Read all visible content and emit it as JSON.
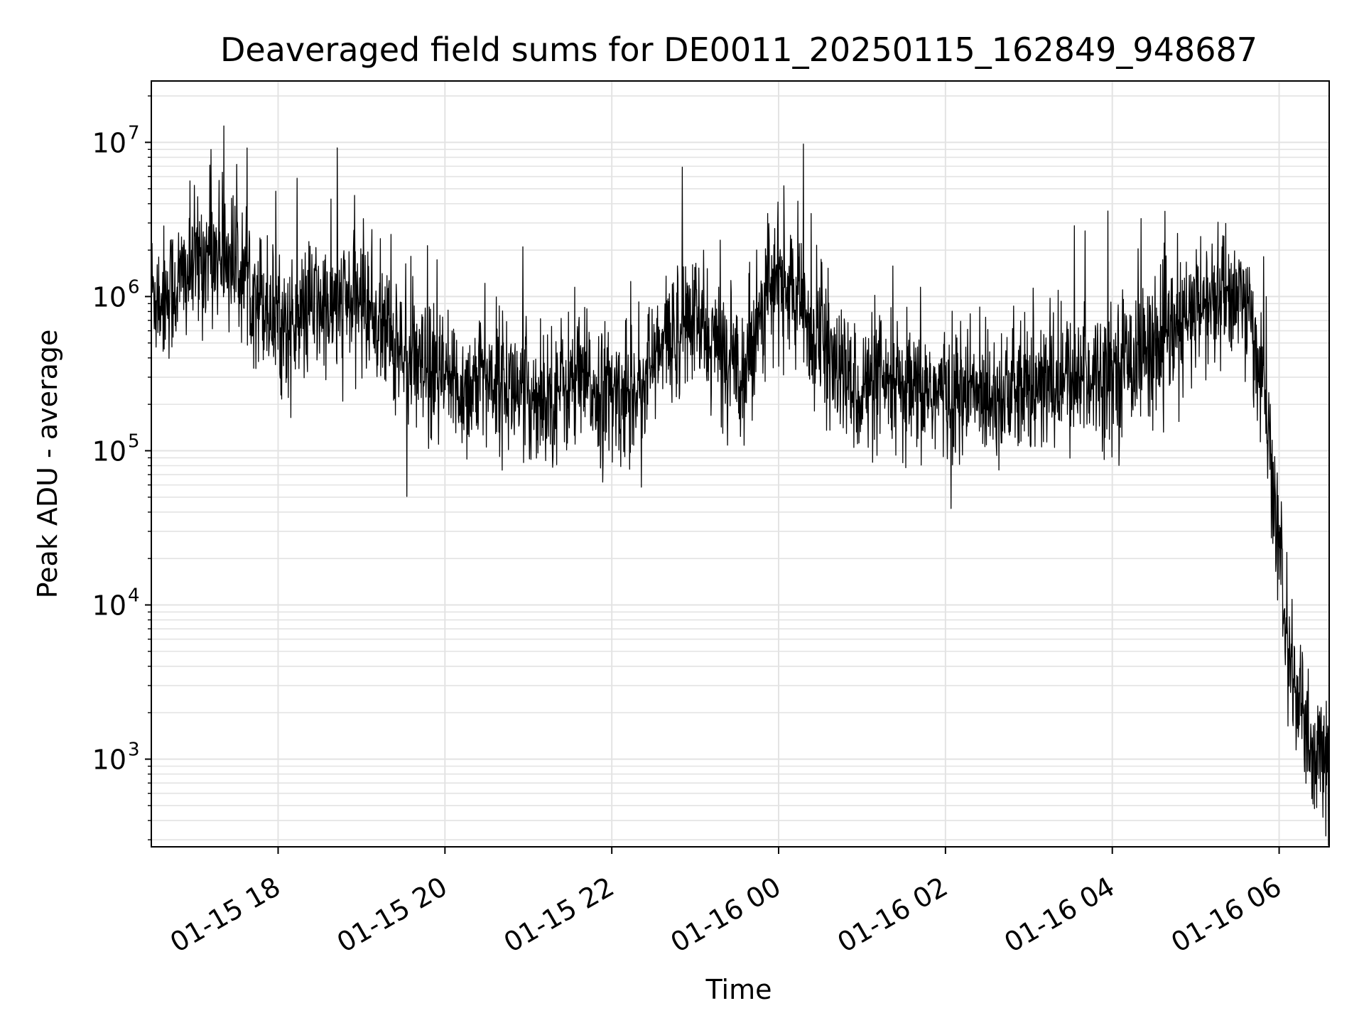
{
  "chart_data": {
    "type": "line",
    "title": "Deaveraged field sums for DE0011_20250115_162849_948687",
    "xlabel": "Time",
    "ylabel": "Peak ADU - average",
    "yscale": "log",
    "grid": true,
    "xlim": [
      "2025-01-15 16:29",
      "2025-01-16 06:36"
    ],
    "ylim": [
      270,
      25000000
    ],
    "x_ticks": [
      "01-15 18",
      "01-15 20",
      "01-15 22",
      "01-16 00",
      "01-16 02",
      "01-16 04",
      "01-16 06"
    ],
    "y_ticks": [
      {
        "base": "10",
        "exp": "3",
        "value": 1000
      },
      {
        "base": "10",
        "exp": "4",
        "value": 10000
      },
      {
        "base": "10",
        "exp": "5",
        "value": 100000
      },
      {
        "base": "10",
        "exp": "6",
        "value": 1000000
      },
      {
        "base": "10",
        "exp": "7",
        "value": 10000000
      }
    ],
    "series": [
      {
        "color": "#000000",
        "x_hours_from_1500": [
          1.48,
          1.6,
          1.8,
          2.0,
          2.2,
          2.4,
          2.6,
          2.8,
          3.0,
          3.2,
          3.4,
          3.6,
          3.8,
          4.0,
          4.2,
          4.4,
          4.6,
          4.8,
          5.0,
          5.2,
          5.4,
          5.6,
          5.8,
          6.0,
          6.2,
          6.4,
          6.6,
          6.8,
          7.0,
          7.2,
          7.4,
          7.6,
          7.8,
          8.0,
          8.2,
          8.4,
          8.6,
          8.8,
          9.0,
          9.2,
          9.4,
          9.6,
          9.8,
          10.0,
          10.2,
          10.4,
          10.6,
          10.8,
          11.0,
          11.2,
          11.4,
          11.6,
          11.8,
          12.0,
          12.2,
          12.4,
          12.6,
          12.8,
          13.0,
          13.2,
          13.4,
          13.6,
          13.8,
          14.0,
          14.2,
          14.4,
          14.6,
          14.8,
          15.0,
          15.1,
          15.2,
          15.3,
          15.4,
          15.5,
          15.6
        ],
        "y_typical": [
          1100000,
          1000000,
          1200000,
          1600000,
          2000000,
          1800000,
          1400000,
          1000000,
          700000,
          600000,
          900000,
          800000,
          900000,
          1000000,
          700000,
          500000,
          350000,
          300000,
          280000,
          250000,
          280000,
          300000,
          260000,
          220000,
          230000,
          260000,
          280000,
          250000,
          220000,
          240000,
          300000,
          450000,
          650000,
          700000,
          500000,
          400000,
          350000,
          900000,
          1300000,
          1000000,
          600000,
          400000,
          280000,
          250000,
          260000,
          240000,
          220000,
          250000,
          230000,
          220000,
          240000,
          250000,
          230000,
          240000,
          260000,
          280000,
          300000,
          320000,
          350000,
          400000,
          450000,
          500000,
          600000,
          800000,
          900000,
          1100000,
          900000,
          300000,
          20000,
          6000,
          2500,
          1500,
          900,
          1000,
          800
        ]
      }
    ]
  }
}
